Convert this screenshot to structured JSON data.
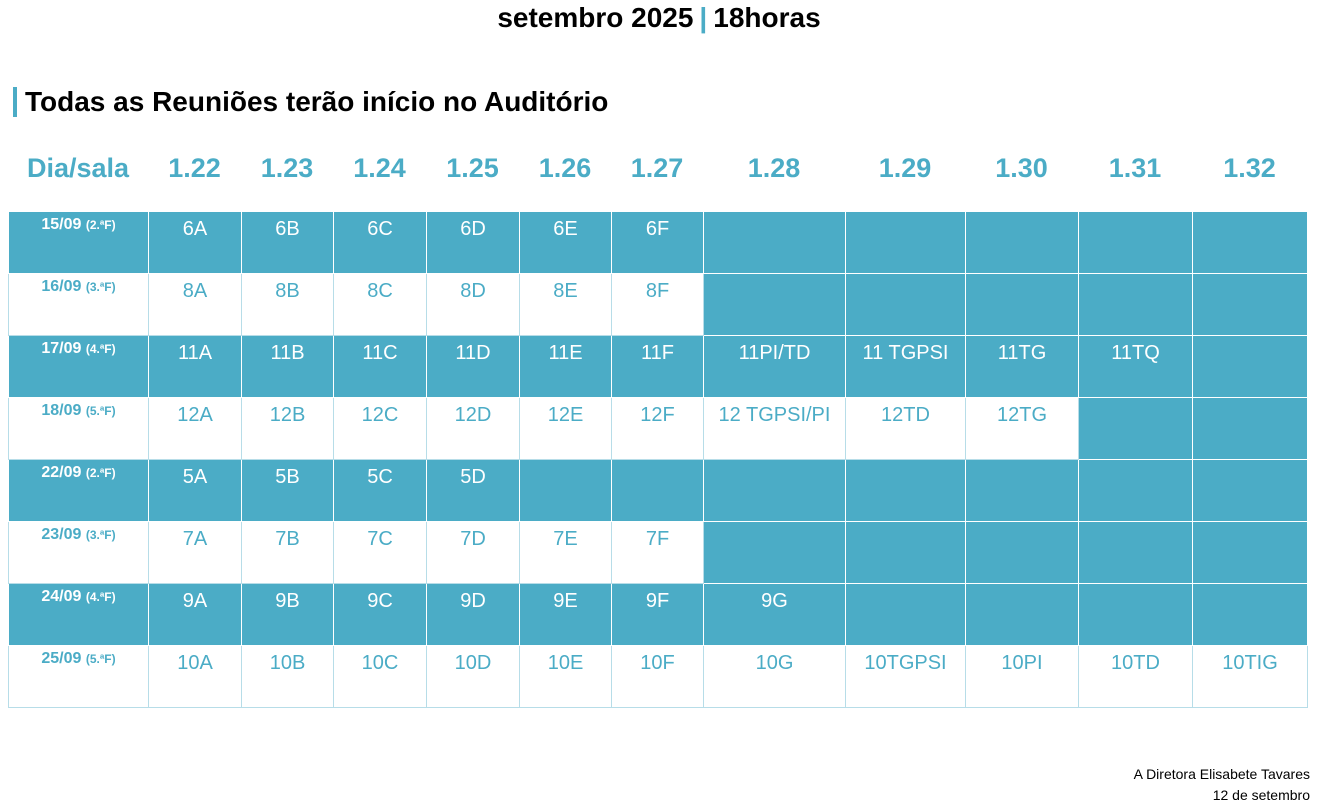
{
  "header": {
    "month": "setembro 2025",
    "separator": "|",
    "time": "18horas"
  },
  "subtitle": "Todas as Reuniões terão início no Auditório",
  "columns": [
    "Dia/sala",
    "1.22",
    "1.23",
    "1.24",
    "1.25",
    "1.26",
    "1.27",
    "1.28",
    "1.29",
    "1.30",
    "1.31",
    "1.32"
  ],
  "rows": [
    {
      "date": "15/09",
      "weekday": "(2.ªF)",
      "cells": [
        "6A",
        "6B",
        "6C",
        "6D",
        "6E",
        "6F",
        "",
        "",
        "",
        "",
        ""
      ]
    },
    {
      "date": "16/09",
      "weekday": "(3.ªF)",
      "cells": [
        "8A",
        "8B",
        "8C",
        "8D",
        "8E",
        "8F",
        "",
        "",
        "",
        "",
        ""
      ]
    },
    {
      "date": "17/09",
      "weekday": "(4.ªF)",
      "cells": [
        "11A",
        "11B",
        "11C",
        "11D",
        "11E",
        "11F",
        "11PI/TD",
        "11 TGPSI",
        "11TG",
        "11TQ",
        ""
      ]
    },
    {
      "date": "18/09",
      "weekday": "(5.ªF)",
      "cells": [
        "12A",
        "12B",
        "12C",
        "12D",
        "12E",
        "12F",
        "12 TGPSI/PI",
        "12TD",
        "12TG",
        "",
        ""
      ]
    },
    {
      "date": "22/09",
      "weekday": "(2.ªF)",
      "cells": [
        "5A",
        "5B",
        "5C",
        "5D",
        "",
        "",
        "",
        "",
        "",
        "",
        ""
      ]
    },
    {
      "date": "23/09",
      "weekday": "(3.ªF)",
      "cells": [
        "7A",
        "7B",
        "7C",
        "7D",
        "7E",
        "7F",
        "",
        "",
        "",
        "",
        ""
      ]
    },
    {
      "date": "24/09",
      "weekday": "(4.ªF)",
      "cells": [
        "9A",
        "9B",
        "9C",
        "9D",
        "9E",
        "9F",
        "9G",
        "",
        "",
        "",
        ""
      ]
    },
    {
      "date": "25/09",
      "weekday": "(5.ªF)",
      "cells": [
        "10A",
        "10B",
        "10C",
        "10D",
        "10E",
        "10F",
        "10G",
        "10TGPSI",
        "10PI",
        "10TD",
        "10TIG"
      ]
    }
  ],
  "signature": {
    "name": "A Diretora Elisabete Tavares",
    "date": "12 de setembro"
  },
  "colors": {
    "accent": "#4BACC6",
    "text": "#000000",
    "background": "#FFFFFF"
  }
}
